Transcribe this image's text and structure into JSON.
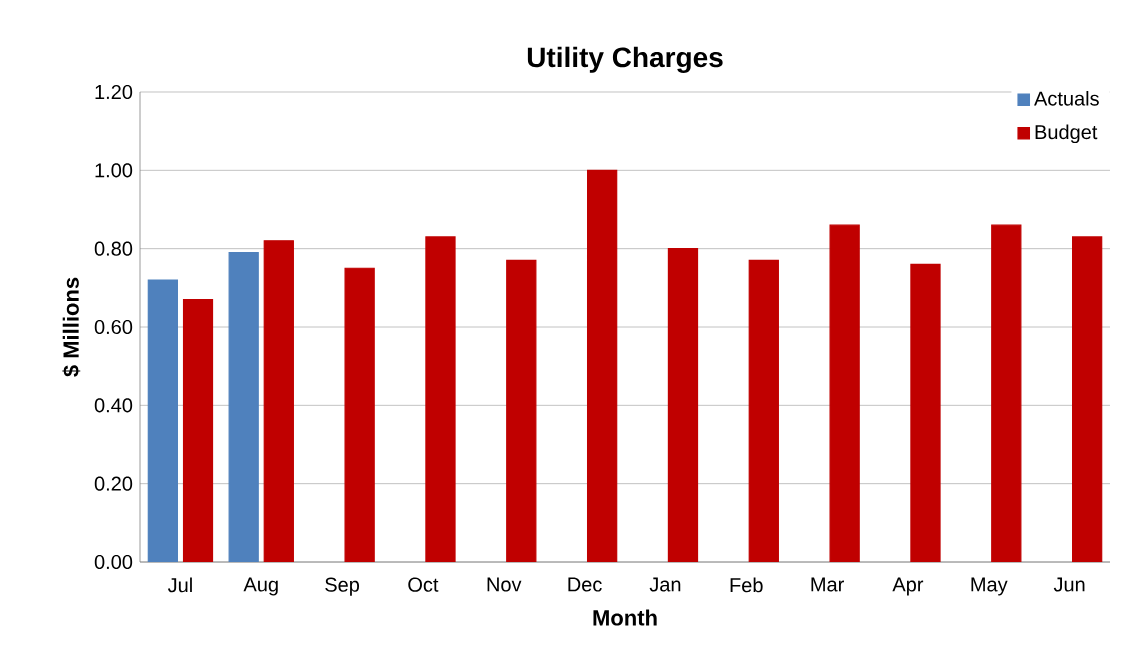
{
  "chart_data": {
    "type": "bar",
    "title": "Utility Charges",
    "xlabel": "Month",
    "ylabel": "$ Millions",
    "categories": [
      "Jul",
      "Aug",
      "Sep",
      "Oct",
      "Nov",
      "Dec",
      "Jan",
      "Feb",
      "Mar",
      "Apr",
      "May",
      "Jun"
    ],
    "series": [
      {
        "name": "Actuals",
        "color": "#4f81bd",
        "values": [
          0.72,
          0.79,
          null,
          null,
          null,
          null,
          null,
          null,
          null,
          null,
          null,
          null
        ]
      },
      {
        "name": "Budget",
        "color": "#c00000",
        "values": [
          0.67,
          0.82,
          0.75,
          0.83,
          0.77,
          1.0,
          0.8,
          0.77,
          0.86,
          0.76,
          0.86,
          0.83
        ]
      }
    ],
    "ylim": [
      0,
      1.2
    ],
    "yticks": [
      {
        "value": 0,
        "label": "0.00"
      },
      {
        "value": 0.2,
        "label": "0.20"
      },
      {
        "value": 0.4,
        "label": "0.40"
      },
      {
        "value": 0.6,
        "label": "0.60"
      },
      {
        "value": 0.8,
        "label": "0.80"
      },
      {
        "value": 1.0,
        "label": "1.00"
      },
      {
        "value": 1.2,
        "label": "1.20"
      }
    ],
    "grid": "y",
    "legend": "top right"
  }
}
